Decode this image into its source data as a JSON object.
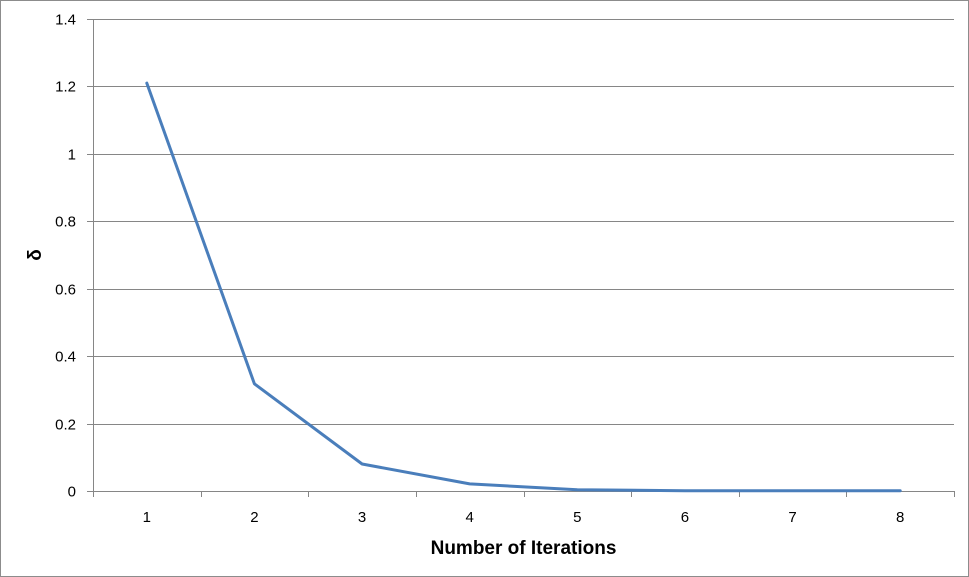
{
  "chart_data": {
    "type": "line",
    "title": "",
    "xlabel": "Number of Iterations",
    "ylabel": "δ",
    "x": [
      1,
      2,
      3,
      4,
      5,
      6,
      7,
      8
    ],
    "series": [
      {
        "values": [
          1.21,
          0.318,
          0.08,
          0.021,
          0.004,
          0.001,
          0.001,
          0.001
        ]
      }
    ],
    "ylim": [
      0,
      1.4
    ],
    "yticks": [
      0,
      0.2,
      0.4,
      0.6,
      0.8,
      1,
      1.2,
      1.4
    ],
    "xtick_labels": [
      "1",
      "2",
      "3",
      "4",
      "5",
      "6",
      "7",
      "8"
    ],
    "ytick_labels": [
      "0",
      "0.2",
      "0.4",
      "0.6",
      "0.8",
      "1",
      "1.2",
      "1.4"
    ],
    "grid": "horizontal",
    "legend": "none",
    "line_color": "#4a7ebb"
  }
}
